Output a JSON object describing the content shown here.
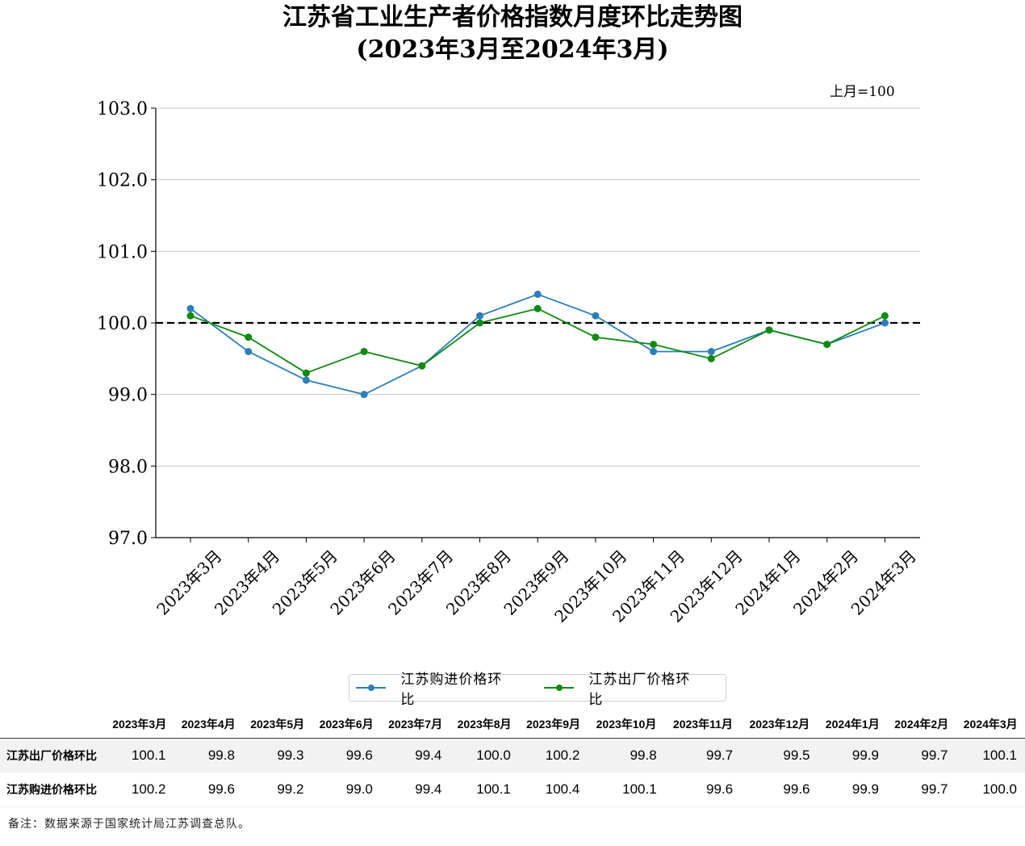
{
  "title_line1": "江苏省工业生产者价格指数月度环比走势图",
  "title_line2": "(2023年3月至2024年3月)",
  "unit_note": "上月=100",
  "chart_data": {
    "type": "line",
    "categories": [
      "2023年3月",
      "2023年4月",
      "2023年5月",
      "2023年6月",
      "2023年7月",
      "2023年8月",
      "2023年9月",
      "2023年10月",
      "2023年11月",
      "2023年12月",
      "2024年1月",
      "2024年2月",
      "2024年3月"
    ],
    "series": [
      {
        "name": "江苏购进价格环比",
        "color": "#2c7fb8",
        "values": [
          100.2,
          99.6,
          99.2,
          99.0,
          99.4,
          100.1,
          100.4,
          100.1,
          99.6,
          99.6,
          99.9,
          99.7,
          100.0
        ]
      },
      {
        "name": "江苏出厂价格环比",
        "color": "#108a10",
        "values": [
          100.1,
          99.8,
          99.3,
          99.6,
          99.4,
          100.0,
          100.2,
          99.8,
          99.7,
          99.5,
          99.9,
          99.7,
          100.1
        ]
      }
    ],
    "ylim": [
      97.0,
      103.0
    ],
    "yticks": [
      "97.0",
      "98.0",
      "99.0",
      "100.0",
      "101.0",
      "102.0",
      "103.0"
    ],
    "reference_line": 100.0,
    "grid": true,
    "legend": "bottom-center"
  },
  "table": {
    "columns": [
      "2023年3月",
      "2023年4月",
      "2023年5月",
      "2023年6月",
      "2023年7月",
      "2023年8月",
      "2023年9月",
      "2023年10月",
      "2023年11月",
      "2023年12月",
      "2024年1月",
      "2024年2月",
      "2024年3月"
    ],
    "rows": [
      {
        "label": "江苏出厂价格环比",
        "values": [
          "100.1",
          "99.8",
          "99.3",
          "99.6",
          "99.4",
          "100.0",
          "100.2",
          "99.8",
          "99.7",
          "99.5",
          "99.9",
          "99.7",
          "100.1"
        ]
      },
      {
        "label": "江苏购进价格环比",
        "values": [
          "100.2",
          "99.6",
          "99.2",
          "99.0",
          "99.4",
          "100.1",
          "100.4",
          "100.1",
          "99.6",
          "99.6",
          "99.9",
          "99.7",
          "100.0"
        ]
      }
    ]
  },
  "footnote": "备注：数据来源于国家统计局江苏调查总队。"
}
